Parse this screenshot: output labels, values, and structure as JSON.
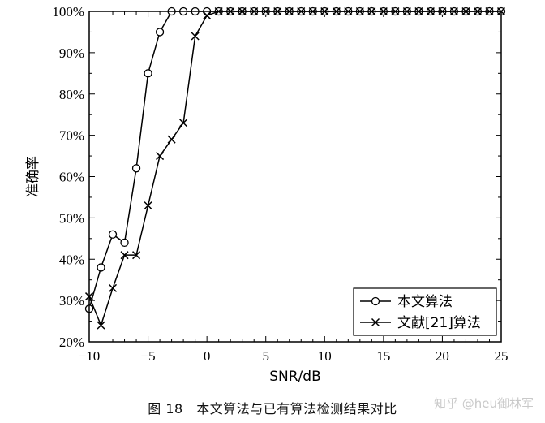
{
  "chart_data": {
    "type": "line",
    "xlabel": "SNR/dB",
    "ylabel": "准确率",
    "xlim": [
      -10,
      25
    ],
    "ylim": [
      20,
      100
    ],
    "x_ticks": [
      "−10",
      "−5",
      "0",
      "5",
      "10",
      "15",
      "20",
      "25"
    ],
    "y_ticks": [
      "20%",
      "30%",
      "40%",
      "50%",
      "60%",
      "70%",
      "80%",
      "90%",
      "100%"
    ],
    "legend_position": "bottom-right",
    "series": [
      {
        "name": "本文算法",
        "marker": "circle",
        "x": [
          -10,
          -9,
          -8,
          -7,
          -6,
          -5,
          -4,
          -3,
          -2,
          -1,
          0,
          1,
          2,
          3,
          4,
          5,
          6,
          7,
          8,
          9,
          10,
          11,
          12,
          13,
          14,
          15,
          16,
          17,
          18,
          19,
          20,
          21,
          22,
          23,
          24,
          25
        ],
        "y": [
          28,
          38,
          46,
          44,
          62,
          85,
          95,
          100,
          100,
          100,
          100,
          100,
          100,
          100,
          100,
          100,
          100,
          100,
          100,
          100,
          100,
          100,
          100,
          100,
          100,
          100,
          100,
          100,
          100,
          100,
          100,
          100,
          100,
          100,
          100,
          100
        ]
      },
      {
        "name": "文献[21]算法",
        "marker": "cross",
        "x": [
          -10,
          -9,
          -8,
          -7,
          -6,
          -5,
          -4,
          -3,
          -2,
          -1,
          0,
          1,
          2,
          3,
          4,
          5,
          6,
          7,
          8,
          9,
          10,
          11,
          12,
          13,
          14,
          15,
          16,
          17,
          18,
          19,
          20,
          21,
          22,
          23,
          24,
          25
        ],
        "y": [
          31,
          24,
          33,
          41,
          41,
          53,
          65,
          69,
          73,
          94,
          99,
          100,
          100,
          100,
          100,
          100,
          100,
          100,
          100,
          100,
          100,
          100,
          100,
          100,
          100,
          100,
          100,
          100,
          100,
          100,
          100,
          100,
          100,
          100,
          100,
          100
        ]
      }
    ]
  },
  "caption": "图 18　本文算法与已有算法检测结果对比",
  "watermark": "知乎 @heu御林军"
}
